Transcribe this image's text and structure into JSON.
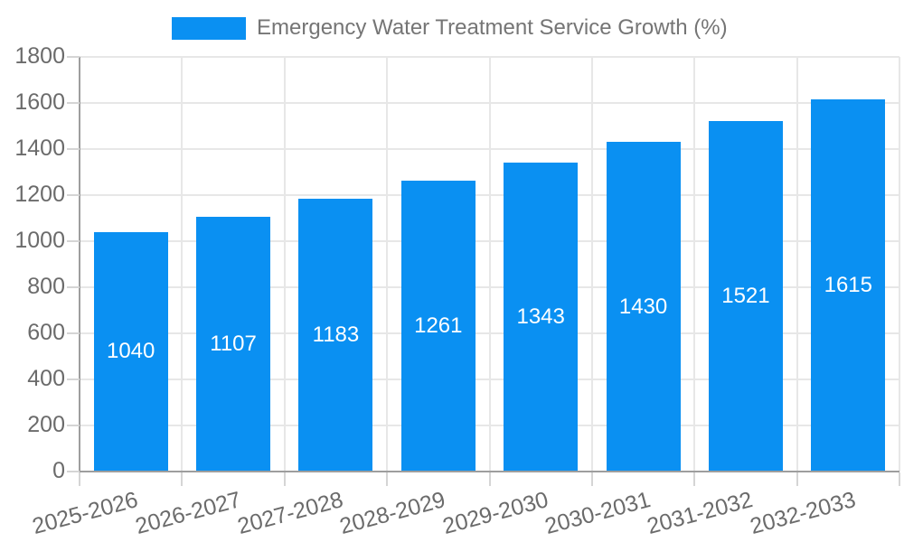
{
  "chart_data": {
    "type": "bar",
    "title": "Emergency Water Treatment Service Growth (%)",
    "legend": "Emergency Water Treatment Service Growth (%)",
    "legend_position": "top-center",
    "categories": [
      "2025-2026",
      "2026-2027",
      "2027-2028",
      "2028-2029",
      "2029-2030",
      "2030-2031",
      "2031-2032",
      "2032-2033"
    ],
    "values": [
      1040,
      1107,
      1183,
      1261,
      1343,
      1430,
      1521,
      1615
    ],
    "xlabel": "",
    "ylabel": "",
    "ylim": [
      0,
      1800
    ],
    "y_ticks": [
      0,
      200,
      400,
      600,
      800,
      1000,
      1200,
      1400,
      1600,
      1800
    ],
    "grid": true,
    "xtick_rotation_deg": -15,
    "bar_label_position": "center-inside",
    "colors": {
      "bar": "#0a90f2",
      "bar_value_label": "#ffffff",
      "grid_line": "#e7e7e7",
      "axis_line": "#9e9e9e",
      "tick_mark": "#d5d5d5",
      "tick_label": "#6b6b6b",
      "legend_text": "#757575",
      "background": "#ffffff"
    }
  }
}
